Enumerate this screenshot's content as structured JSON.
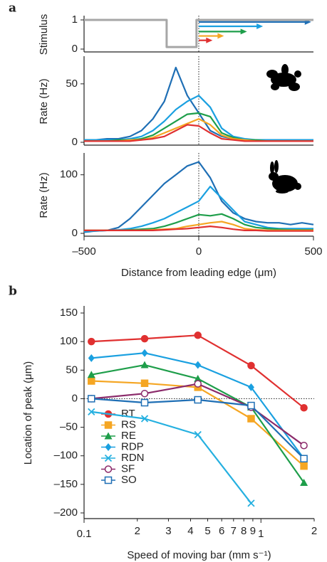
{
  "chart_data": [
    {
      "type": "line",
      "panel": "a",
      "ylabel": "Stimulus",
      "xlim": [
        -500,
        500
      ],
      "ylim": [
        0,
        1
      ],
      "yticks": [
        0,
        1
      ],
      "vline": 0,
      "series": [
        {
          "color": "#a6a6a6",
          "x": [
            -500,
            -140,
            -140,
            -10,
            -10,
            500
          ],
          "values": [
            1,
            1,
            0.07,
            0.07,
            1,
            1
          ]
        }
      ],
      "arrows": [
        {
          "color": "#1f6fb5",
          "x": [
            0,
            490
          ],
          "y": 0.93
        },
        {
          "color": "#1aa0e0",
          "x": [
            0,
            280
          ],
          "y": 0.78
        },
        {
          "color": "#1e9e4a",
          "x": [
            0,
            210
          ],
          "y": 0.6
        },
        {
          "color": "#f5a623",
          "x": [
            0,
            110
          ],
          "y": 0.45
        },
        {
          "color": "#e03030",
          "x": [
            0,
            60
          ],
          "y": 0.3
        }
      ]
    },
    {
      "type": "line",
      "ylabel": "Rate (Hz)",
      "xlim": [
        -500,
        500
      ],
      "ylim": [
        0,
        70
      ],
      "yticks": [
        0,
        50
      ],
      "vline": 0,
      "x": [
        -500,
        -450,
        -400,
        -350,
        -300,
        -250,
        -200,
        -150,
        -100,
        -50,
        0,
        50,
        100,
        150,
        200,
        250,
        300,
        350,
        400,
        450,
        500
      ],
      "series": [
        {
          "color": "#1f6fb5",
          "values": [
            2,
            2,
            3,
            3,
            5,
            10,
            20,
            35,
            64,
            40,
            25,
            10,
            5,
            3,
            2,
            2,
            2,
            2,
            2,
            2,
            2
          ]
        },
        {
          "color": "#1aa0e0",
          "values": [
            2,
            2,
            2,
            2,
            3,
            5,
            10,
            18,
            28,
            35,
            40,
            30,
            12,
            5,
            3,
            2,
            2,
            2,
            2,
            2,
            2
          ]
        },
        {
          "color": "#1e9e4a",
          "values": [
            1,
            1,
            1,
            2,
            2,
            3,
            6,
            12,
            18,
            24,
            25,
            22,
            8,
            4,
            2,
            2,
            1,
            1,
            1,
            1,
            1
          ]
        },
        {
          "color": "#f5a623",
          "values": [
            1,
            1,
            1,
            1,
            2,
            2,
            4,
            8,
            12,
            16,
            20,
            15,
            6,
            3,
            2,
            1,
            1,
            1,
            1,
            1,
            1
          ]
        },
        {
          "color": "#e03030",
          "values": [
            1,
            1,
            1,
            1,
            1,
            2,
            3,
            5,
            10,
            15,
            14,
            8,
            3,
            2,
            1,
            1,
            1,
            1,
            1,
            1,
            1
          ]
        }
      ]
    },
    {
      "type": "line",
      "ylabel": "Rate (Hz)",
      "xlabel": "Distance from leading edge (μm)",
      "xlim": [
        -500,
        500
      ],
      "ylim": [
        0,
        130
      ],
      "yticks": [
        0,
        100
      ],
      "xticks": [
        {
          "value": -500,
          "label": "–500"
        },
        0,
        500
      ],
      "vline": 0,
      "x": [
        -500,
        -450,
        -400,
        -350,
        -300,
        -250,
        -200,
        -150,
        -100,
        -50,
        0,
        50,
        100,
        150,
        200,
        250,
        300,
        350,
        400,
        450,
        500
      ],
      "series": [
        {
          "color": "#1f6fb5",
          "values": [
            2,
            4,
            5,
            10,
            25,
            45,
            65,
            85,
            100,
            115,
            122,
            95,
            55,
            35,
            25,
            20,
            18,
            18,
            15,
            18,
            15
          ]
        },
        {
          "color": "#1aa0e0",
          "values": [
            3,
            4,
            5,
            6,
            8,
            12,
            18,
            25,
            35,
            45,
            55,
            80,
            60,
            40,
            20,
            15,
            10,
            8,
            8,
            8,
            8
          ]
        },
        {
          "color": "#1e9e4a",
          "values": [
            5,
            5,
            5,
            5,
            6,
            7,
            8,
            12,
            18,
            25,
            32,
            30,
            33,
            25,
            15,
            10,
            8,
            7,
            6,
            6,
            6
          ]
        },
        {
          "color": "#f5a623",
          "values": [
            5,
            5,
            5,
            5,
            5,
            5,
            6,
            7,
            8,
            12,
            15,
            18,
            20,
            15,
            8,
            6,
            5,
            5,
            5,
            5,
            5
          ]
        },
        {
          "color": "#e03030",
          "values": [
            5,
            5,
            5,
            5,
            5,
            5,
            5,
            6,
            7,
            8,
            10,
            12,
            10,
            7,
            5,
            5,
            4,
            4,
            4,
            4,
            4
          ]
        }
      ]
    },
    {
      "type": "scatter-line",
      "panel": "b",
      "ylabel": "Location of peak (μm)",
      "xlabel": "Speed of moving bar (mm s⁻¹)",
      "xlim": [
        0.1,
        2
      ],
      "xlog": true,
      "ylim": [
        -200,
        150
      ],
      "hline": 0,
      "xticks": [
        0.1,
        {
          "value": 0.2,
          "label": "2"
        },
        {
          "value": 0.3,
          "label": "3"
        },
        {
          "value": 0.4,
          "label": "4"
        },
        {
          "value": 0.5,
          "label": "5"
        },
        {
          "value": 0.6,
          "label": "6"
        },
        {
          "value": 0.7,
          "label": "7"
        },
        {
          "value": 0.8,
          "label": "8"
        },
        {
          "value": 0.9,
          "label": "9"
        },
        1,
        2
      ],
      "yticks": [
        {
          "value": -200,
          "label": "–200"
        },
        {
          "value": -150,
          "label": "–150"
        },
        {
          "value": -100,
          "label": "–100"
        },
        {
          "value": -50,
          "label": "–50"
        },
        0,
        50,
        100,
        150
      ],
      "x": [
        0.11,
        0.22,
        0.44,
        0.88,
        1.75
      ],
      "series": [
        {
          "name": "RT",
          "color": "#e03030",
          "marker": "circle",
          "values": [
            100,
            105,
            111,
            58,
            -16
          ]
        },
        {
          "name": "RS",
          "color": "#f5a623",
          "marker": "square",
          "values": [
            31,
            27,
            20,
            -35,
            -118
          ]
        },
        {
          "name": "RE",
          "color": "#1e9e4a",
          "marker": "triangle",
          "values": [
            42,
            59,
            35,
            -15,
            -147
          ]
        },
        {
          "name": "RDP",
          "color": "#1aa0e0",
          "marker": "diamond",
          "values": [
            71,
            80,
            59,
            20,
            -105
          ]
        },
        {
          "name": "RDN",
          "color": "#25b0e0",
          "marker": "x",
          "values": [
            -23,
            -35,
            -63,
            -183,
            null
          ]
        },
        {
          "name": "SF",
          "color": "#8b2a6a",
          "marker": "open-circle",
          "values": [
            0,
            9,
            26,
            -15,
            -82
          ]
        },
        {
          "name": "SO",
          "color": "#1f6fb5",
          "marker": "open-square",
          "values": [
            0,
            -7,
            -2,
            -12,
            -105
          ]
        }
      ]
    }
  ]
}
